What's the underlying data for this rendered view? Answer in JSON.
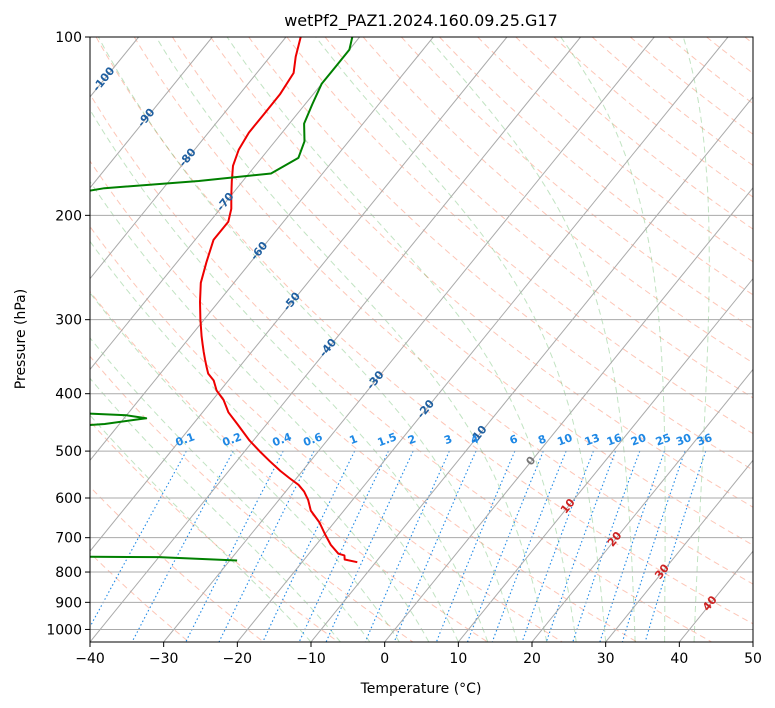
{
  "chart_data": {
    "type": "line",
    "chart_kind": "skew-T log-P sounding",
    "title": "wetPf2_PAZ1.2024.160.09.25.G17",
    "xlabel": "Temperature (°C)",
    "ylabel": "Pressure (hPa)",
    "xlim": [
      -40,
      50
    ],
    "ylim": [
      1050,
      100
    ],
    "y_scale": "log",
    "grid": true,
    "x_ticks": [
      -40,
      -30,
      -20,
      -10,
      0,
      10,
      20,
      30,
      40,
      50
    ],
    "x_tick_labels": [
      "−40",
      "−30",
      "−20",
      "−10",
      "0",
      "10",
      "20",
      "30",
      "40",
      "50"
    ],
    "y_ticks": [
      1000,
      900,
      800,
      700,
      600,
      500,
      400,
      300,
      200,
      100
    ],
    "y_tick_labels": [
      "1000",
      "900",
      "800",
      "700",
      "600",
      "500",
      "400",
      "300",
      "200",
      "100"
    ],
    "colors": {
      "temperature": "#ee0000",
      "dewpoint": "#008000",
      "isotherm": "#aaaaaa",
      "dry_adiabat": "#fa8060",
      "moist_adiabat": "#4caf50",
      "mixing_ratio": "#1e88e5",
      "isotherm_label": "#1f5fa0",
      "mixing_label": "#1e88e5",
      "warm_label": "#cc2222",
      "zero_label": "#777777"
    },
    "series": [
      {
        "role": "temperature",
        "p": [
          770,
          762,
          750,
          745,
          720,
          690,
          660,
          630,
          605,
          585,
          570,
          555,
          540,
          520,
          500,
          480,
          450,
          430,
          410,
          395,
          380,
          370,
          360,
          350,
          340,
          330,
          320,
          300,
          280,
          260,
          240,
          220,
          205,
          195,
          185,
          175,
          165,
          155,
          145,
          135,
          125,
          115,
          108,
          100
        ],
        "t": [
          -12.5,
          -14.5,
          -15,
          -16,
          -18,
          -20,
          -22,
          -24.5,
          -26,
          -27.5,
          -29,
          -31,
          -33,
          -35.5,
          -38,
          -40.5,
          -44,
          -46.5,
          -48.5,
          -50.5,
          -52,
          -53.5,
          -54.5,
          -55.5,
          -56.5,
          -57.5,
          -58.5,
          -60.5,
          -62.5,
          -64.5,
          -66,
          -67.5,
          -67.5,
          -68.5,
          -70,
          -71.5,
          -73,
          -74,
          -74.5,
          -74.5,
          -74.5,
          -75,
          -76.5,
          -78
        ]
      },
      {
        "role": "dewpoint",
        "p": [
          765,
          755,
          750,
          745,
          740,
          735,
          730,
          725,
          720,
          470,
          460,
          450,
          440,
          435,
          430,
          415,
          400,
          385,
          370,
          355,
          345,
          270,
          240,
          220,
          200,
          185,
          180,
          175,
          170,
          160,
          150,
          140,
          130,
          120,
          112,
          105,
          100
        ],
        "t": [
          -29,
          -40,
          -90,
          -90,
          -61,
          -71,
          -90,
          -67,
          -90,
          -90,
          -72,
          -62,
          -57,
          -60,
          -69,
          -89,
          -99,
          -99,
          -95,
          -100,
          -104,
          -104,
          -98,
          -96,
          -94,
          -93,
          -88,
          -76,
          -67,
          -65,
          -66,
          -68,
          -69,
          -70,
          -70,
          -70,
          -71
        ]
      }
    ],
    "isotherm_labels": [
      "-100",
      "-90",
      "-80",
      "-70",
      "-60",
      "-50",
      "-40",
      "-30",
      "-20",
      "-10",
      "0",
      "10",
      "20",
      "30",
      "40"
    ],
    "mixing_ratio_labels": [
      "0.1",
      "0.2",
      "0.4",
      "0.6",
      "1",
      "1.5",
      "2",
      "3",
      "4",
      "6",
      "8",
      "10",
      "13",
      "16",
      "20",
      "25",
      "30",
      "36"
    ]
  }
}
